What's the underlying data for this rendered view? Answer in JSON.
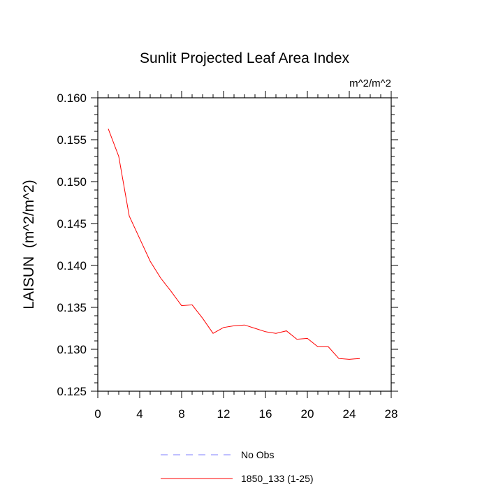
{
  "chart_data": {
    "type": "line",
    "title": "Sunlit Projected Leaf Area Index",
    "units_label": "m^2/m^2",
    "ylabel": "LAISUN  (m^2/m^2)",
    "xlabel": "",
    "xlim": [
      0,
      28
    ],
    "ylim": [
      0.125,
      0.16
    ],
    "xticks": [
      "0",
      "4",
      "8",
      "12",
      "16",
      "20",
      "24",
      "28"
    ],
    "yticks": [
      "0.125",
      "0.130",
      "0.135",
      "0.140",
      "0.145",
      "0.150",
      "0.155",
      "0.160"
    ],
    "grid": false,
    "legend_position": "bottom-center",
    "series": [
      {
        "name": "No Obs",
        "color": "#7f7fff",
        "style": "dashed",
        "x": [],
        "y": []
      },
      {
        "name": "1850_133 (1-25)",
        "color": "#ff0000",
        "style": "solid",
        "x": [
          1,
          2,
          3,
          4,
          5,
          6,
          7,
          8,
          9,
          10,
          11,
          12,
          13,
          14,
          15,
          16,
          17,
          18,
          19,
          20,
          21,
          22,
          23,
          24,
          25
        ],
        "y": [
          0.1563,
          0.153,
          0.1459,
          0.1432,
          0.1405,
          0.1385,
          0.1369,
          0.1352,
          0.1353,
          0.1337,
          0.1319,
          0.1326,
          0.1328,
          0.1329,
          0.1325,
          0.1321,
          0.1319,
          0.1322,
          0.1312,
          0.1313,
          0.1303,
          0.1303,
          0.1289,
          0.1288,
          0.1289
        ]
      }
    ]
  }
}
